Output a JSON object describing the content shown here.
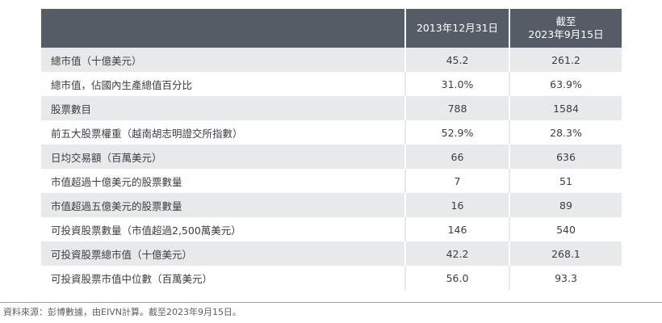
{
  "table": {
    "headers": {
      "label": "",
      "col1": "2013年12月31日",
      "col2_line1": "截至",
      "col2_line2": "2023年9月15日"
    },
    "rows": [
      {
        "label": "總市值（十億美元）",
        "v1": "45.2",
        "v2": "261.2"
      },
      {
        "label": "總市值，佔國內生產總值百分比",
        "v1": "31.0%",
        "v2": "63.9%"
      },
      {
        "label": "股票數目",
        "v1": "788",
        "v2": "1584"
      },
      {
        "label": "前五大股票權重（越南胡志明證交所指數）",
        "v1": "52.9%",
        "v2": "28.3%"
      },
      {
        "label": "日均交易額（百萬美元）",
        "v1": "66",
        "v2": "636"
      },
      {
        "label": "市值超過十億美元的股票數量",
        "v1": "7",
        "v2": "51"
      },
      {
        "label": "市值超過五億美元的股票數量",
        "v1": "16",
        "v2": "89"
      },
      {
        "label": "可投資股票數量（市值超過2,500萬美元）",
        "v1": "146",
        "v2": "540"
      },
      {
        "label": "可投資股票總市值（十億美元）",
        "v1": "42.2",
        "v2": "268.1"
      },
      {
        "label": "可投資股票市值中位數（百萬美元）",
        "v1": "56.0",
        "v2": "93.3"
      }
    ]
  },
  "footnote": "資料來源：彭博數據，由EIVN計算。截至2023年9月15日。",
  "colors": {
    "header_bg": "#565c66",
    "stripe_bg": "#e8e9eb",
    "text": "#3a3d42"
  }
}
